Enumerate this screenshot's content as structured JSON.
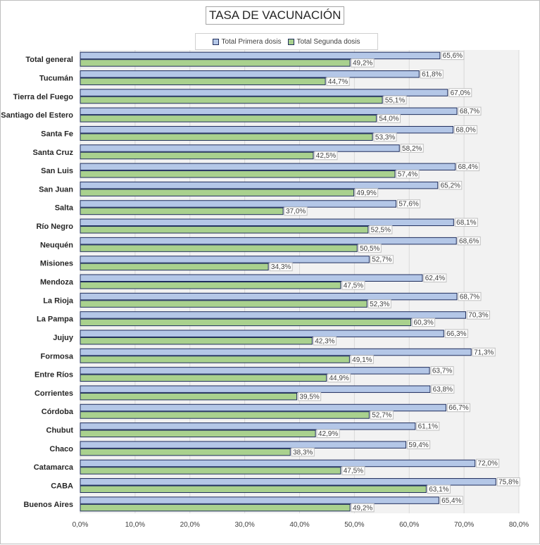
{
  "chart_data": {
    "type": "bar",
    "orientation": "horizontal",
    "title": "TASA DE VACUNACIÓN",
    "legend_position": "top",
    "grid": true,
    "xlim": [
      0,
      80
    ],
    "ticks": [
      0,
      10,
      20,
      30,
      40,
      50,
      60,
      70,
      80
    ],
    "tick_labels": [
      "0,0%",
      "10,0%",
      "20,0%",
      "30,0%",
      "40,0%",
      "50,0%",
      "60,0%",
      "70,0%",
      "80,0%"
    ],
    "categories": [
      "Total general",
      "Tucumán",
      "Tierra del Fuego",
      "Santiago del Estero",
      "Santa Fe",
      "Santa Cruz",
      "San Luis",
      "San Juan",
      "Salta",
      "Río Negro",
      "Neuquén",
      "Misiones",
      "Mendoza",
      "La Rioja",
      "La Pampa",
      "Jujuy",
      "Formosa",
      "Entre Ríos",
      "Corrientes",
      "Córdoba",
      "Chubut",
      "Chaco",
      "Catamarca",
      "CABA",
      "Buenos Aires"
    ],
    "series": [
      {
        "name": "Total Primera dosis",
        "color": "#b4c7e7",
        "values": [
          65.6,
          61.8,
          67.0,
          68.7,
          68.0,
          58.2,
          68.4,
          65.2,
          57.6,
          68.1,
          68.6,
          52.7,
          62.4,
          68.7,
          70.3,
          66.3,
          71.3,
          63.7,
          63.8,
          66.7,
          61.1,
          59.4,
          72.0,
          75.8,
          65.4
        ],
        "labels": [
          "65,6%",
          "61,8%",
          "67,0%",
          "68,7%",
          "68,0%",
          "58,2%",
          "68,4%",
          "65,2%",
          "57,6%",
          "68,1%",
          "68,6%",
          "52,7%",
          "62,4%",
          "68,7%",
          "70,3%",
          "66,3%",
          "71,3%",
          "63,7%",
          "63,8%",
          "66,7%",
          "61,1%",
          "59,4%",
          "72,0%",
          "75,8%",
          "65,4%"
        ]
      },
      {
        "name": "Total Segunda dosis",
        "color": "#a9d18e",
        "values": [
          49.2,
          44.7,
          55.1,
          54.0,
          53.3,
          42.5,
          57.4,
          49.9,
          37.0,
          52.5,
          50.5,
          34.3,
          47.5,
          52.3,
          60.3,
          42.3,
          49.1,
          44.9,
          39.5,
          52.7,
          42.9,
          38.3,
          47.5,
          63.1,
          49.2
        ],
        "labels": [
          "49,2%",
          "44,7%",
          "55,1%",
          "54,0%",
          "53,3%",
          "42,5%",
          "57,4%",
          "49,9%",
          "37,0%",
          "52,5%",
          "50,5%",
          "34,3%",
          "47,5%",
          "52,3%",
          "60,3%",
          "42,3%",
          "49,1%",
          "44,9%",
          "39,5%",
          "52,7%",
          "42,9%",
          "38,3%",
          "47,5%",
          "63,1%",
          "49,2%"
        ]
      }
    ]
  }
}
